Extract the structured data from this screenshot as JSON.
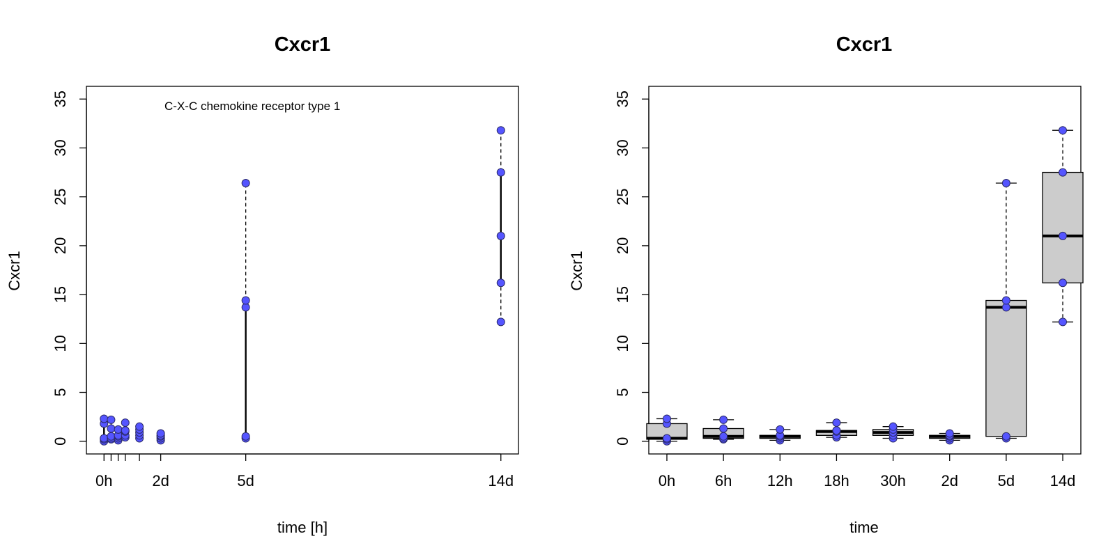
{
  "point_color": "#5555ff",
  "box_fill": "#cccccc",
  "chart_data": [
    {
      "type": "scatter",
      "title": "Cxcr1",
      "xlabel": "time [h]",
      "ylabel": "Cxcr1",
      "annotation": "C-X-C chemokine receptor type 1",
      "ylim": [
        -1.3,
        36.3
      ],
      "xlim": [
        -14.9,
        350.9
      ],
      "yticks": [
        0,
        5,
        10,
        15,
        20,
        25,
        30,
        35
      ],
      "xticks": [
        {
          "x": 0,
          "label": "0h"
        },
        {
          "x": 6,
          "label": ""
        },
        {
          "x": 12,
          "label": ""
        },
        {
          "x": 18,
          "label": ""
        },
        {
          "x": 30,
          "label": ""
        },
        {
          "x": 48,
          "label": "2d"
        },
        {
          "x": 120,
          "label": "5d"
        },
        {
          "x": 336,
          "label": "14d"
        }
      ],
      "groups": [
        {
          "x": 0,
          "values": [
            0.0,
            0.2,
            0.3,
            1.8,
            2.3
          ]
        },
        {
          "x": 6,
          "values": [
            0.2,
            0.3,
            0.5,
            1.3,
            2.2
          ]
        },
        {
          "x": 12,
          "values": [
            0.1,
            0.3,
            0.5,
            0.6,
            1.2
          ]
        },
        {
          "x": 18,
          "values": [
            0.4,
            0.6,
            1.0,
            1.1,
            1.9
          ]
        },
        {
          "x": 30,
          "values": [
            0.3,
            0.6,
            0.9,
            1.2,
            1.5
          ]
        },
        {
          "x": 48,
          "values": [
            0.1,
            0.3,
            0.5,
            0.6,
            0.8
          ]
        },
        {
          "x": 120,
          "values": [
            0.3,
            0.5,
            13.7,
            14.4,
            26.4
          ]
        },
        {
          "x": 336,
          "values": [
            12.2,
            16.2,
            21.0,
            27.5,
            31.8
          ]
        }
      ]
    },
    {
      "type": "box",
      "title": "Cxcr1",
      "xlabel": "time",
      "ylabel": "Cxcr1",
      "ylim": [
        -1.3,
        36.3
      ],
      "yticks": [
        0,
        5,
        10,
        15,
        20,
        25,
        30,
        35
      ],
      "categories": [
        "0h",
        "6h",
        "12h",
        "18h",
        "30h",
        "2d",
        "5d",
        "14d"
      ],
      "boxes": [
        {
          "min": 0.0,
          "q1": 0.2,
          "median": 0.3,
          "q3": 1.8,
          "max": 2.3
        },
        {
          "min": 0.2,
          "q1": 0.3,
          "median": 0.5,
          "q3": 1.3,
          "max": 2.2
        },
        {
          "min": 0.1,
          "q1": 0.3,
          "median": 0.5,
          "q3": 0.6,
          "max": 1.2
        },
        {
          "min": 0.4,
          "q1": 0.6,
          "median": 1.0,
          "q3": 1.1,
          "max": 1.9
        },
        {
          "min": 0.3,
          "q1": 0.6,
          "median": 0.9,
          "q3": 1.2,
          "max": 1.5
        },
        {
          "min": 0.1,
          "q1": 0.3,
          "median": 0.5,
          "q3": 0.6,
          "max": 0.8
        },
        {
          "min": 0.3,
          "q1": 0.5,
          "median": 13.7,
          "q3": 14.4,
          "max": 26.4
        },
        {
          "min": 12.2,
          "q1": 16.2,
          "median": 21.0,
          "q3": 27.5,
          "max": 31.8
        }
      ],
      "points": [
        [
          0.0,
          0.2,
          0.3,
          1.8,
          2.3
        ],
        [
          0.2,
          0.3,
          0.5,
          1.3,
          2.2
        ],
        [
          0.1,
          0.3,
          0.5,
          0.6,
          1.2
        ],
        [
          0.4,
          0.6,
          1.0,
          1.1,
          1.9
        ],
        [
          0.3,
          0.6,
          0.9,
          1.2,
          1.5
        ],
        [
          0.1,
          0.3,
          0.5,
          0.6,
          0.8
        ],
        [
          0.3,
          0.5,
          13.7,
          14.4,
          26.4
        ],
        [
          12.2,
          16.2,
          21.0,
          27.5,
          31.8
        ]
      ]
    }
  ]
}
